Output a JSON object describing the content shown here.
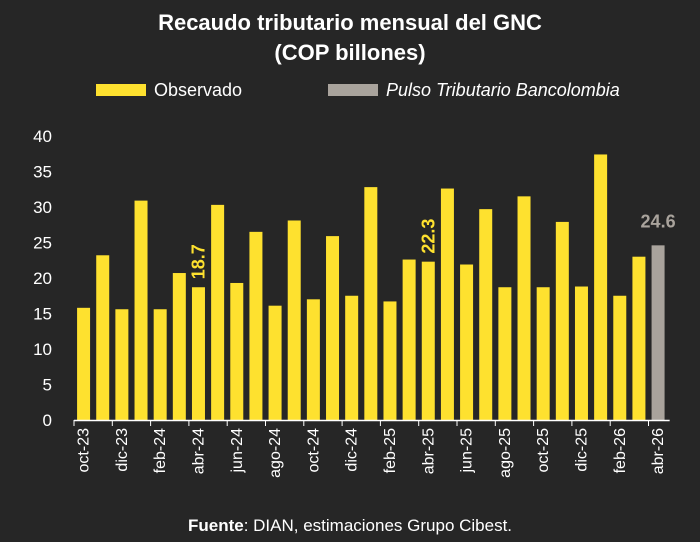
{
  "chart_data": {
    "type": "bar",
    "title": "Recaudo tributario mensual del GNC",
    "subtitle": "(COP billones)",
    "legend": [
      "Observado",
      "Pulso Tributario Bancolombia"
    ],
    "legend_position": "top",
    "categories": [
      "oct-23",
      "nov-23",
      "dic-23",
      "ene-24",
      "feb-24",
      "mar-24",
      "abr-24",
      "may-24",
      "jun-24",
      "jul-24",
      "ago-24",
      "sep-24",
      "oct-24",
      "nov-24",
      "dic-24",
      "ene-25",
      "feb-25",
      "mar-25",
      "abr-25",
      "may-25",
      "jun-25",
      "jul-25",
      "ago-25",
      "sep-25",
      "oct-25",
      "nov-25",
      "dic-25",
      "ene-26",
      "feb-26",
      "mar-26",
      "abr-26"
    ],
    "tick_labels": [
      "oct-23",
      "dic-23",
      "feb-24",
      "abr-24",
      "jun-24",
      "ago-24",
      "oct-24",
      "dic-24",
      "feb-25",
      "abr-25",
      "jun-25",
      "ago-25",
      "oct-25",
      "dic-25",
      "feb-26",
      "abr-26"
    ],
    "series": [
      {
        "name": "Observado",
        "color": "#FEE12F",
        "values": [
          15.8,
          23.2,
          15.6,
          30.9,
          15.6,
          20.7,
          18.7,
          30.3,
          19.3,
          26.5,
          16.1,
          28.1,
          17.0,
          25.9,
          17.5,
          32.8,
          16.7,
          22.6,
          22.3,
          32.6,
          21.9,
          29.7,
          18.7,
          31.5,
          18.7,
          27.9,
          18.8,
          37.4,
          17.5,
          23.0,
          null
        ]
      },
      {
        "name": "Pulso Tributario Bancolombia",
        "color": "#A9A39C",
        "values": [
          null,
          null,
          null,
          null,
          null,
          null,
          null,
          null,
          null,
          null,
          null,
          null,
          null,
          null,
          null,
          null,
          null,
          null,
          null,
          null,
          null,
          null,
          null,
          null,
          null,
          null,
          null,
          null,
          null,
          null,
          24.6
        ]
      }
    ],
    "data_labels": [
      {
        "category": "abr-24",
        "text": "18.7",
        "color": "#FEE12F",
        "rotated": true
      },
      {
        "category": "abr-25",
        "text": "22.3",
        "color": "#FEE12F",
        "rotated": true
      },
      {
        "category": "abr-26",
        "text": "24.6",
        "color": "#A9A39C",
        "rotated": false
      }
    ],
    "ylim": [
      0,
      40
    ],
    "yticks": [
      0,
      5,
      10,
      15,
      20,
      25,
      30,
      35,
      40
    ],
    "grid": false,
    "source_label": "Fuente",
    "source_text": ": DIAN, estimaciones Grupo Cibest."
  }
}
